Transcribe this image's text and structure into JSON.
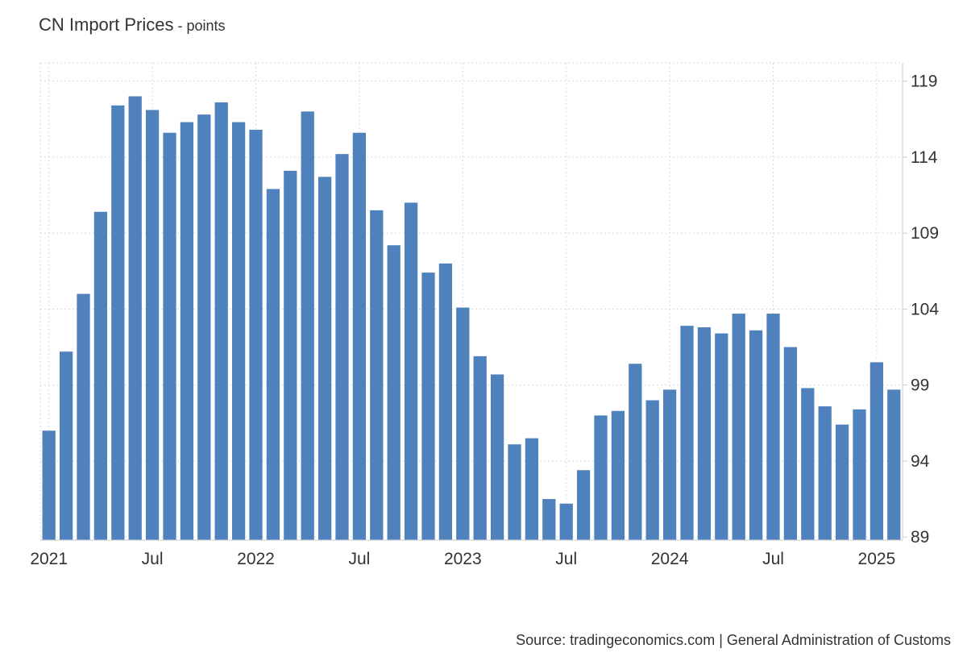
{
  "header": {
    "title": "CN Import Prices",
    "unit_suffix": " - points"
  },
  "footer": {
    "source": "Source: tradingeconomics.com | General Administration of Customs"
  },
  "colors": {
    "bar": "#4f81bd",
    "grid": "#d9d9d9",
    "axis": "#cccccc"
  },
  "chart_data": {
    "type": "bar",
    "title": "CN Import Prices",
    "unit": "points",
    "xlabel": "",
    "ylabel": "",
    "ylim": [
      88.8,
      120.2
    ],
    "y_ticks": [
      89,
      94,
      99,
      104,
      109,
      114,
      119
    ],
    "y_axis_position": "right",
    "grid": true,
    "x_tick_labels": [
      {
        "label": "2021",
        "date": "2021-01"
      },
      {
        "label": "Jul",
        "date": "2021-07"
      },
      {
        "label": "2022",
        "date": "2022-01"
      },
      {
        "label": "Jul",
        "date": "2022-07"
      },
      {
        "label": "2023",
        "date": "2023-01"
      },
      {
        "label": "Jul",
        "date": "2023-07"
      },
      {
        "label": "2024",
        "date": "2024-01"
      },
      {
        "label": "Jul",
        "date": "2024-07"
      },
      {
        "label": "2025",
        "date": "2025-01"
      }
    ],
    "categories": [
      "2021-01",
      "2021-02",
      "2021-03",
      "2021-04",
      "2021-05",
      "2021-06",
      "2021-07",
      "2021-08",
      "2021-09",
      "2021-10",
      "2021-11",
      "2021-12",
      "2022-01",
      "2022-02",
      "2022-03",
      "2022-04",
      "2022-05",
      "2022-06",
      "2022-07",
      "2022-08",
      "2022-09",
      "2022-10",
      "2022-11",
      "2022-12",
      "2023-01",
      "2023-02",
      "2023-03",
      "2023-04",
      "2023-05",
      "2023-06",
      "2023-07",
      "2023-08",
      "2023-09",
      "2023-10",
      "2023-11",
      "2023-12",
      "2024-01",
      "2024-02",
      "2024-03",
      "2024-04",
      "2024-05",
      "2024-06",
      "2024-07",
      "2024-08",
      "2024-09",
      "2024-10",
      "2024-11",
      "2024-12",
      "2025-01",
      "2025-02"
    ],
    "values": [
      96.0,
      101.2,
      105.0,
      110.4,
      117.4,
      118.0,
      117.1,
      115.6,
      116.3,
      116.8,
      117.6,
      116.3,
      115.8,
      111.9,
      113.1,
      117.0,
      112.7,
      114.2,
      115.6,
      110.5,
      108.2,
      111.0,
      106.4,
      107.0,
      104.1,
      100.9,
      99.7,
      95.1,
      95.5,
      91.5,
      91.2,
      93.4,
      97.0,
      97.3,
      100.4,
      98.0,
      98.7,
      102.9,
      102.8,
      102.4,
      103.7,
      102.6,
      103.7,
      101.5,
      98.8,
      97.6,
      96.4,
      97.4,
      100.5,
      98.7
    ]
  }
}
